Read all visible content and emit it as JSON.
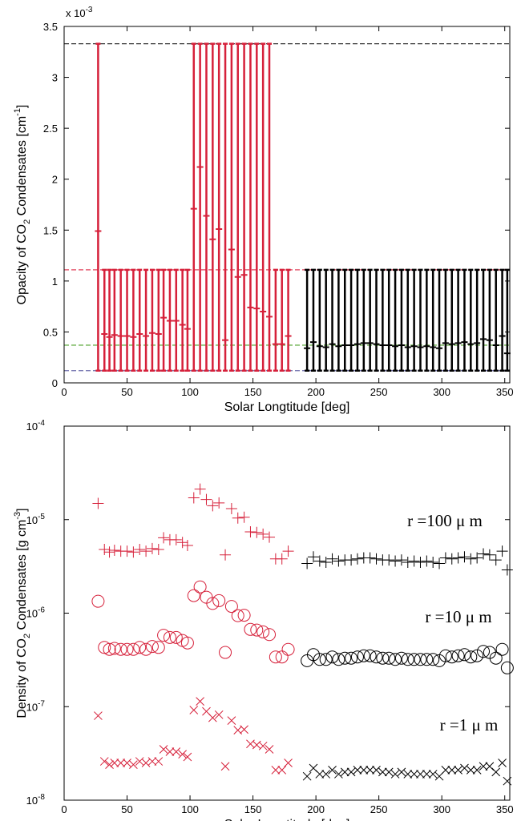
{
  "chart_data": [
    {
      "type": "errorbar",
      "xlabel": "Solar Longtitude [deg]",
      "ylabel_parts": [
        "Opacity of CO",
        "2",
        " Condensates [cm",
        "-1",
        "]"
      ],
      "y_multiplier": {
        "label": "x 10",
        "sup": "-3"
      },
      "xlim": [
        0,
        354
      ],
      "ylim": [
        0,
        3.5
      ],
      "xticks": [
        0,
        50,
        100,
        150,
        200,
        250,
        300,
        350
      ],
      "yticks": [
        0,
        0.5,
        1,
        1.5,
        2,
        2.5,
        3,
        3.5
      ],
      "hlines": [
        {
          "value": 3.33,
          "color": "#333333"
        },
        {
          "value": 1.11,
          "color": "#e0405a"
        },
        {
          "value": 0.37,
          "color": "#6ab04c"
        },
        {
          "value": 0.12,
          "color": "#6a6aaa"
        }
      ],
      "series": [
        {
          "color": "#d6203a",
          "x": [
            27,
            32,
            36,
            40,
            45,
            50,
            55,
            60,
            65,
            70,
            75,
            79,
            84,
            89,
            94,
            98,
            103,
            108,
            113,
            118,
            123,
            128,
            133,
            138,
            143,
            148,
            153,
            158,
            163,
            168,
            173,
            178
          ],
          "values": [
            1.49,
            0.48,
            0.45,
            0.47,
            0.46,
            0.46,
            0.45,
            0.48,
            0.46,
            0.49,
            0.48,
            0.64,
            0.61,
            0.61,
            0.57,
            0.53,
            1.71,
            2.12,
            1.64,
            1.41,
            1.51,
            0.42,
            1.31,
            1.04,
            1.06,
            0.74,
            0.73,
            0.7,
            0.65,
            0.38,
            0.38,
            0.46
          ],
          "err_low": [
            0.12,
            0.12,
            0.12,
            0.12,
            0.12,
            0.12,
            0.12,
            0.12,
            0.12,
            0.12,
            0.12,
            0.12,
            0.12,
            0.12,
            0.12,
            0.12,
            0.12,
            0.12,
            0.12,
            0.12,
            0.12,
            0.12,
            0.12,
            0.12,
            0.12,
            0.12,
            0.12,
            0.12,
            0.12,
            0.12,
            0.12,
            0.12
          ],
          "err_high": [
            3.33,
            1.11,
            1.11,
            1.11,
            1.11,
            1.11,
            1.11,
            1.11,
            1.11,
            1.11,
            1.11,
            1.11,
            1.11,
            1.11,
            1.11,
            1.11,
            3.33,
            3.33,
            3.33,
            3.33,
            3.33,
            3.33,
            3.33,
            3.33,
            3.33,
            3.33,
            3.33,
            3.33,
            3.33,
            1.11,
            1.11,
            1.11
          ]
        },
        {
          "color": "#000000",
          "x": [
            193,
            198,
            203,
            208,
            213,
            218,
            223,
            228,
            233,
            238,
            243,
            248,
            253,
            258,
            263,
            268,
            273,
            278,
            283,
            288,
            293,
            298,
            303,
            308,
            313,
            318,
            323,
            328,
            333,
            338,
            343,
            348,
            352
          ],
          "values": [
            0.34,
            0.4,
            0.36,
            0.35,
            0.38,
            0.36,
            0.37,
            0.37,
            0.38,
            0.39,
            0.39,
            0.38,
            0.37,
            0.37,
            0.36,
            0.37,
            0.35,
            0.36,
            0.35,
            0.36,
            0.35,
            0.34,
            0.39,
            0.38,
            0.39,
            0.4,
            0.38,
            0.39,
            0.43,
            0.42,
            0.37,
            0.46,
            0.29
          ],
          "err_low": [
            0.12,
            0.12,
            0.12,
            0.12,
            0.12,
            0.12,
            0.12,
            0.12,
            0.12,
            0.12,
            0.12,
            0.12,
            0.12,
            0.12,
            0.12,
            0.12,
            0.12,
            0.12,
            0.12,
            0.12,
            0.12,
            0.12,
            0.12,
            0.12,
            0.12,
            0.12,
            0.12,
            0.12,
            0.12,
            0.12,
            0.12,
            0.12,
            0.12
          ],
          "err_high": [
            1.11,
            1.11,
            1.11,
            1.11,
            1.11,
            1.11,
            1.11,
            1.11,
            1.11,
            1.11,
            1.11,
            1.11,
            1.11,
            1.11,
            1.11,
            1.11,
            1.11,
            1.11,
            1.11,
            1.11,
            1.11,
            1.11,
            1.11,
            1.11,
            1.11,
            1.11,
            1.11,
            1.11,
            1.11,
            1.11,
            1.11,
            1.11,
            1.11
          ]
        }
      ]
    },
    {
      "type": "scatter",
      "log_y": true,
      "xlabel": "Solar Longtitude [deg]",
      "ylabel_parts": [
        "Density of CO",
        "2",
        " Condensates [g cm",
        "-3",
        "]"
      ],
      "xlim": [
        0,
        354
      ],
      "ylim": [
        1e-08,
        0.0001
      ],
      "xticks": [
        0,
        50,
        100,
        150,
        200,
        250,
        300,
        350
      ],
      "yticks": [
        {
          "value": 1e-08,
          "label": "10",
          "sup": "-8"
        },
        {
          "value": 1e-07,
          "label": "10",
          "sup": "-7"
        },
        {
          "value": 1e-06,
          "label": "10",
          "sup": "-6"
        },
        {
          "value": 1e-05,
          "label": "10",
          "sup": "-5"
        },
        {
          "value": 0.0001,
          "label": "10",
          "sup": "-4"
        }
      ],
      "annotations": [
        "r =100 μ m",
        "r =10 μ m",
        "r =1 μ m"
      ],
      "series": [
        {
          "color": "#d6203a",
          "marker": "plus",
          "x": [
            27,
            32,
            36,
            40,
            45,
            50,
            55,
            60,
            65,
            70,
            75,
            79,
            84,
            89,
            94,
            98,
            103,
            108,
            113,
            118,
            123,
            128,
            133,
            138,
            143,
            148,
            153,
            158,
            163,
            168,
            173,
            178
          ],
          "values": [
            1.49e-05,
            4.8e-06,
            4.5e-06,
            4.7e-06,
            4.6e-06,
            4.6e-06,
            4.5e-06,
            4.8e-06,
            4.6e-06,
            4.9e-06,
            4.8e-06,
            6.4e-06,
            6.1e-06,
            6.1e-06,
            5.7e-06,
            5.3e-06,
            1.71e-05,
            2.12e-05,
            1.64e-05,
            1.41e-05,
            1.51e-05,
            4.2e-06,
            1.31e-05,
            1.04e-05,
            1.06e-05,
            7.4e-06,
            7.3e-06,
            7e-06,
            6.5e-06,
            3.8e-06,
            3.8e-06,
            4.6e-06
          ]
        },
        {
          "color": "#d6203a",
          "marker": "circle",
          "x": [
            27,
            32,
            36,
            40,
            45,
            50,
            55,
            60,
            65,
            70,
            75,
            79,
            84,
            89,
            94,
            98,
            103,
            108,
            113,
            118,
            123,
            128,
            133,
            138,
            143,
            148,
            153,
            158,
            163,
            168,
            173,
            178
          ],
          "values": [
            1.34e-06,
            4.3e-07,
            4.1e-07,
            4.2e-07,
            4.1e-07,
            4.1e-07,
            4.1e-07,
            4.3e-07,
            4.1e-07,
            4.4e-07,
            4.3e-07,
            5.8e-07,
            5.5e-07,
            5.5e-07,
            5.1e-07,
            4.8e-07,
            1.54e-06,
            1.91e-06,
            1.48e-06,
            1.27e-06,
            1.36e-06,
            3.8e-07,
            1.18e-06,
            9.4e-07,
            9.5e-07,
            6.7e-07,
            6.6e-07,
            6.3e-07,
            5.9e-07,
            3.4e-07,
            3.4e-07,
            4.1e-07
          ]
        },
        {
          "color": "#d6203a",
          "marker": "cross",
          "x": [
            27,
            32,
            36,
            40,
            45,
            50,
            55,
            60,
            65,
            70,
            75,
            79,
            84,
            89,
            94,
            98,
            103,
            108,
            113,
            118,
            123,
            128,
            133,
            138,
            143,
            148,
            153,
            158,
            163,
            168,
            173,
            178
          ],
          "values": [
            8e-08,
            2.6e-08,
            2.4e-08,
            2.5e-08,
            2.5e-08,
            2.5e-08,
            2.4e-08,
            2.6e-08,
            2.5e-08,
            2.6e-08,
            2.6e-08,
            3.5e-08,
            3.3e-08,
            3.3e-08,
            3.1e-08,
            2.9e-08,
            9.2e-08,
            1.14e-07,
            8.9e-08,
            7.6e-08,
            8.2e-08,
            2.3e-08,
            7.1e-08,
            5.6e-08,
            5.7e-08,
            4e-08,
            3.9e-08,
            3.8e-08,
            3.5e-08,
            2.1e-08,
            2.1e-08,
            2.5e-08
          ]
        },
        {
          "color": "#000000",
          "marker": "plus",
          "x": [
            193,
            198,
            203,
            208,
            213,
            218,
            223,
            228,
            233,
            238,
            243,
            248,
            253,
            258,
            263,
            268,
            273,
            278,
            283,
            288,
            293,
            298,
            303,
            308,
            313,
            318,
            323,
            328,
            333,
            338,
            343,
            348,
            352
          ],
          "values": [
            3.4e-06,
            4e-06,
            3.6e-06,
            3.5e-06,
            3.8e-06,
            3.6e-06,
            3.7e-06,
            3.7e-06,
            3.8e-06,
            3.9e-06,
            3.9e-06,
            3.8e-06,
            3.7e-06,
            3.7e-06,
            3.6e-06,
            3.7e-06,
            3.5e-06,
            3.6e-06,
            3.5e-06,
            3.6e-06,
            3.5e-06,
            3.4e-06,
            3.9e-06,
            3.8e-06,
            3.9e-06,
            4e-06,
            3.8e-06,
            3.9e-06,
            4.3e-06,
            4.2e-06,
            3.7e-06,
            4.6e-06,
            2.9e-06
          ]
        },
        {
          "color": "#000000",
          "marker": "circle",
          "x": [
            193,
            198,
            203,
            208,
            213,
            218,
            223,
            228,
            233,
            238,
            243,
            248,
            253,
            258,
            263,
            268,
            273,
            278,
            283,
            288,
            293,
            298,
            303,
            308,
            313,
            318,
            323,
            328,
            333,
            338,
            343,
            348,
            352
          ],
          "values": [
            3.1e-07,
            3.6e-07,
            3.2e-07,
            3.2e-07,
            3.4e-07,
            3.2e-07,
            3.3e-07,
            3.3e-07,
            3.4e-07,
            3.5e-07,
            3.5e-07,
            3.4e-07,
            3.3e-07,
            3.3e-07,
            3.2e-07,
            3.3e-07,
            3.2e-07,
            3.2e-07,
            3.2e-07,
            3.2e-07,
            3.2e-07,
            3.1e-07,
            3.5e-07,
            3.4e-07,
            3.5e-07,
            3.6e-07,
            3.4e-07,
            3.5e-07,
            3.9e-07,
            3.8e-07,
            3.3e-07,
            4.1e-07,
            2.6e-07
          ]
        },
        {
          "color": "#000000",
          "marker": "cross",
          "x": [
            193,
            198,
            203,
            208,
            213,
            218,
            223,
            228,
            233,
            238,
            243,
            248,
            253,
            258,
            263,
            268,
            273,
            278,
            283,
            288,
            293,
            298,
            303,
            308,
            313,
            318,
            323,
            328,
            333,
            338,
            343,
            348,
            352
          ],
          "values": [
            1.8e-08,
            2.2e-08,
            1.9e-08,
            1.9e-08,
            2.1e-08,
            1.9e-08,
            2e-08,
            2e-08,
            2.1e-08,
            2.1e-08,
            2.1e-08,
            2.1e-08,
            2e-08,
            2e-08,
            1.9e-08,
            2e-08,
            1.9e-08,
            1.9e-08,
            1.9e-08,
            1.9e-08,
            1.9e-08,
            1.8e-08,
            2.1e-08,
            2.1e-08,
            2.1e-08,
            2.2e-08,
            2.1e-08,
            2.1e-08,
            2.3e-08,
            2.3e-08,
            2e-08,
            2.5e-08,
            1.6e-08
          ]
        }
      ]
    }
  ]
}
